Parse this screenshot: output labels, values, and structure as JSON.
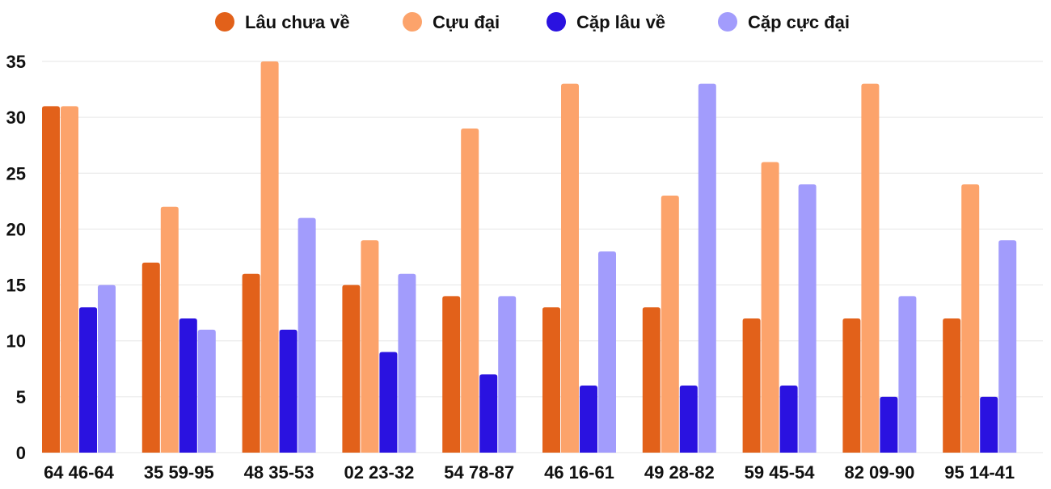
{
  "chart_data": {
    "type": "bar",
    "title": "",
    "xlabel": "",
    "ylabel": "",
    "ylim": [
      0,
      35
    ],
    "yticks": [
      0,
      5,
      10,
      15,
      20,
      25,
      30,
      35
    ],
    "grid": true,
    "legend_position": "top-center",
    "categories": [
      "64 46-64",
      "35 59-95",
      "48 35-53",
      "02 23-32",
      "54 78-87",
      "46 16-61",
      "49 28-82",
      "59 45-54",
      "82 09-90",
      "95 14-41"
    ],
    "series": [
      {
        "name": "Lâu chưa về",
        "color": "#e2611a",
        "values": [
          31,
          17,
          16,
          15,
          14,
          13,
          13,
          12,
          12,
          12
        ]
      },
      {
        "name": "Cựu đại",
        "color": "#fca36b",
        "values": [
          31,
          22,
          35,
          19,
          29,
          33,
          23,
          26,
          33,
          24
        ]
      },
      {
        "name": "Cặp lâu về",
        "color": "#2a12e0",
        "values": [
          13,
          12,
          11,
          9,
          7,
          6,
          6,
          6,
          5,
          5
        ]
      },
      {
        "name": "Cặp cực đại",
        "color": "#a29cfc",
        "values": [
          15,
          11,
          21,
          16,
          14,
          18,
          33,
          24,
          14,
          19
        ]
      }
    ]
  }
}
